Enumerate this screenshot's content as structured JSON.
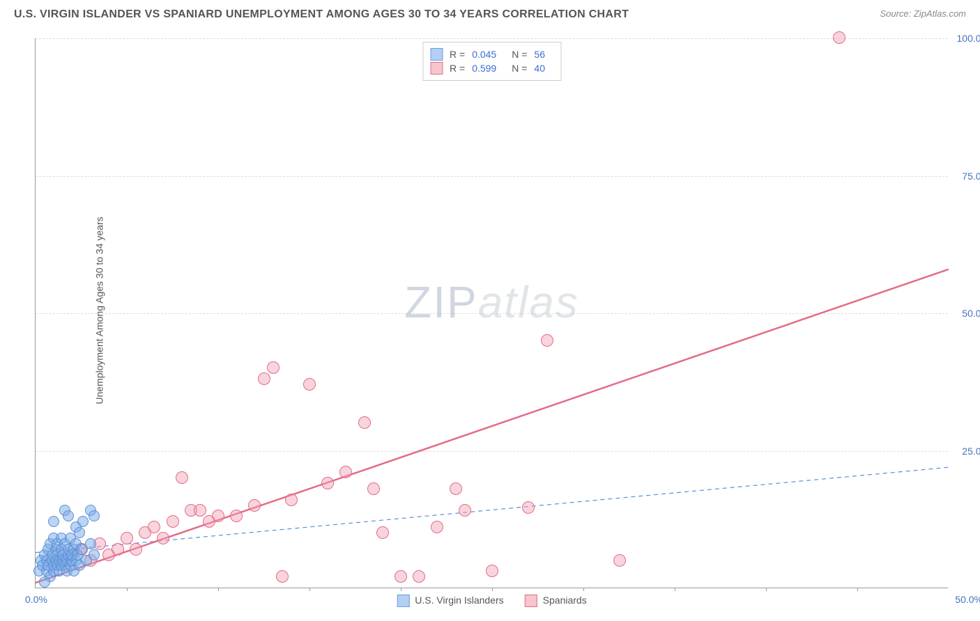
{
  "header": {
    "title": "U.S. VIRGIN ISLANDER VS SPANIARD UNEMPLOYMENT AMONG AGES 30 TO 34 YEARS CORRELATION CHART",
    "source": "Source: ZipAtlas.com"
  },
  "axes": {
    "ylabel": "Unemployment Among Ages 30 to 34 years",
    "xlim": [
      0,
      50
    ],
    "ylim": [
      0,
      100
    ],
    "x_tick_zero": "0.0%",
    "x_tick_max": "50.0%",
    "y_ticks": [
      {
        "val": 25,
        "label": "25.0%"
      },
      {
        "val": 50,
        "label": "50.0%"
      },
      {
        "val": 75,
        "label": "75.0%"
      },
      {
        "val": 100,
        "label": "100.0%"
      }
    ],
    "x_minor_step": 5,
    "grid_color": "#dddddd"
  },
  "watermark": {
    "part1": "ZIP",
    "part2": "atlas"
  },
  "legend_top": {
    "rows": [
      {
        "swatch_fill": "#b3cff2",
        "swatch_border": "#6a9de0",
        "r_label": "R =",
        "r_val": "0.045",
        "n_label": "N =",
        "n_val": "56"
      },
      {
        "swatch_fill": "#f7c5cd",
        "swatch_border": "#e46b86",
        "r_label": "R =",
        "r_val": "0.599",
        "n_label": "N =",
        "n_val": "40"
      }
    ]
  },
  "legend_bottom": {
    "items": [
      {
        "swatch_fill": "#b3cff2",
        "swatch_border": "#6a9de0",
        "label": "U.S. Virgin Islanders"
      },
      {
        "swatch_fill": "#f7c5cd",
        "swatch_border": "#e46b86",
        "label": "Spaniards"
      }
    ]
  },
  "series": {
    "blue": {
      "color_fill": "rgba(120,170,230,0.5)",
      "color_stroke": "#5a8fd8",
      "marker_radius": 8,
      "trend": {
        "x1": 0,
        "y1": 6.5,
        "x2": 50,
        "y2": 22,
        "stroke": "#5a8fd8",
        "width": 1.2,
        "dash": "6,5"
      },
      "points": [
        [
          0.2,
          3
        ],
        [
          0.3,
          5
        ],
        [
          0.4,
          4
        ],
        [
          0.5,
          6
        ],
        [
          0.6,
          3
        ],
        [
          0.6,
          5
        ],
        [
          0.7,
          4
        ],
        [
          0.7,
          7
        ],
        [
          0.8,
          2
        ],
        [
          0.8,
          8
        ],
        [
          0.9,
          5
        ],
        [
          0.9,
          6
        ],
        [
          1.0,
          3
        ],
        [
          1.0,
          4
        ],
        [
          1.0,
          9
        ],
        [
          1.1,
          5
        ],
        [
          1.1,
          7
        ],
        [
          1.2,
          4
        ],
        [
          1.2,
          6
        ],
        [
          1.2,
          8
        ],
        [
          1.3,
          3
        ],
        [
          1.3,
          5
        ],
        [
          1.4,
          4
        ],
        [
          1.4,
          7
        ],
        [
          1.4,
          9
        ],
        [
          1.5,
          5
        ],
        [
          1.5,
          6
        ],
        [
          1.6,
          4
        ],
        [
          1.6,
          8
        ],
        [
          1.7,
          3
        ],
        [
          1.7,
          5
        ],
        [
          1.8,
          6
        ],
        [
          1.8,
          7
        ],
        [
          1.9,
          4
        ],
        [
          1.9,
          9
        ],
        [
          2.0,
          5
        ],
        [
          2.0,
          6
        ],
        [
          2.1,
          3
        ],
        [
          2.1,
          7
        ],
        [
          2.2,
          5
        ],
        [
          2.2,
          8
        ],
        [
          2.2,
          11
        ],
        [
          2.3,
          6
        ],
        [
          2.4,
          4
        ],
        [
          2.4,
          10
        ],
        [
          2.5,
          7
        ],
        [
          2.6,
          12
        ],
        [
          2.8,
          5
        ],
        [
          3.0,
          8
        ],
        [
          3.0,
          14
        ],
        [
          3.2,
          6
        ],
        [
          3.2,
          13
        ],
        [
          1.6,
          14
        ],
        [
          1.8,
          13
        ],
        [
          1.0,
          12
        ],
        [
          0.5,
          1
        ]
      ]
    },
    "pink": {
      "color_fill": "rgba(240,160,180,0.45)",
      "color_stroke": "#e46b86",
      "marker_radius": 9,
      "trend": {
        "x1": 0,
        "y1": 1,
        "x2": 50,
        "y2": 58,
        "stroke": "#e46b86",
        "width": 2.5,
        "dash": "none"
      },
      "points": [
        [
          1.5,
          5
        ],
        [
          2,
          6
        ],
        [
          2.5,
          7
        ],
        [
          3,
          5
        ],
        [
          3.5,
          8
        ],
        [
          4,
          6
        ],
        [
          4.5,
          7
        ],
        [
          5,
          9
        ],
        [
          5.5,
          7
        ],
        [
          6,
          10
        ],
        [
          6.5,
          11
        ],
        [
          7,
          9
        ],
        [
          7.5,
          12
        ],
        [
          8,
          20
        ],
        [
          8.5,
          14
        ],
        [
          9,
          14
        ],
        [
          11,
          13
        ],
        [
          12,
          15
        ],
        [
          12.5,
          38
        ],
        [
          13,
          40
        ],
        [
          13.5,
          2
        ],
        [
          14,
          16
        ],
        [
          15,
          37
        ],
        [
          16,
          19
        ],
        [
          17,
          21
        ],
        [
          18,
          30
        ],
        [
          18.5,
          18
        ],
        [
          19,
          10
        ],
        [
          20,
          2
        ],
        [
          21,
          2
        ],
        [
          22,
          11
        ],
        [
          23,
          18
        ],
        [
          23.5,
          14
        ],
        [
          25,
          3
        ],
        [
          27,
          14.5
        ],
        [
          28,
          45
        ],
        [
          32,
          5
        ],
        [
          44,
          100
        ],
        [
          10,
          13
        ],
        [
          9.5,
          12
        ]
      ]
    }
  }
}
